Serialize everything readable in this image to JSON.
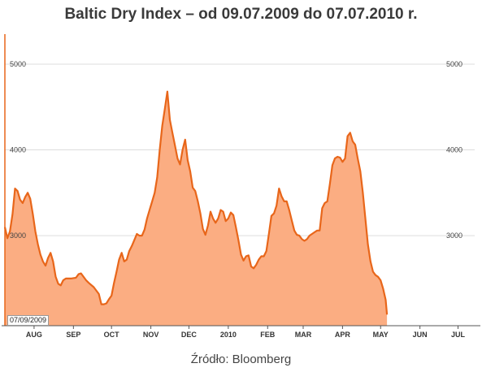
{
  "title": "Baltic Dry Index – od 09.07.2009 do 07.07.2010 r.",
  "source": "Źródło: Bloomberg",
  "date_badge": "07/09/2009",
  "colors": {
    "fill": "#fbad82",
    "line": "#e8661a",
    "grid": "#dddddd",
    "axis": "#555555"
  },
  "chart_data": {
    "type": "area",
    "title": "Baltic Dry Index – od 09.07.2009 do 07.07.2010 r.",
    "xlabel": "",
    "ylabel": "",
    "ylim": [
      1950,
      5350
    ],
    "xlim": [
      0,
      365
    ],
    "grid": true,
    "yticks": [
      3000,
      4000,
      5000
    ],
    "ytick_labels": [
      "3000",
      "4000",
      "5000"
    ],
    "xticks": [
      {
        "label": "AUG",
        "day": 23
      },
      {
        "label": "SEP",
        "day": 54
      },
      {
        "label": "OCT",
        "day": 84
      },
      {
        "label": "NOV",
        "day": 115
      },
      {
        "label": "DEC",
        "day": 145
      },
      {
        "label": "2010",
        "day": 176
      },
      {
        "label": "FEB",
        "day": 207
      },
      {
        "label": "MAR",
        "day": 235
      },
      {
        "label": "APR",
        "day": 266
      },
      {
        "label": "MAY",
        "day": 296
      },
      {
        "label": "JUN",
        "day": 327
      },
      {
        "label": "JUL",
        "day": 357
      }
    ],
    "series": [
      {
        "points": [
          [
            0,
            3100
          ],
          [
            2,
            2970
          ],
          [
            4,
            3050
          ],
          [
            6,
            3250
          ],
          [
            8,
            3550
          ],
          [
            10,
            3520
          ],
          [
            12,
            3420
          ],
          [
            14,
            3380
          ],
          [
            16,
            3450
          ],
          [
            18,
            3500
          ],
          [
            20,
            3430
          ],
          [
            22,
            3250
          ],
          [
            24,
            3050
          ],
          [
            26,
            2900
          ],
          [
            28,
            2780
          ],
          [
            30,
            2700
          ],
          [
            32,
            2650
          ],
          [
            34,
            2740
          ],
          [
            36,
            2800
          ],
          [
            38,
            2700
          ],
          [
            40,
            2520
          ],
          [
            42,
            2440
          ],
          [
            44,
            2420
          ],
          [
            46,
            2480
          ],
          [
            48,
            2500
          ],
          [
            52,
            2500
          ],
          [
            56,
            2510
          ],
          [
            58,
            2550
          ],
          [
            60,
            2560
          ],
          [
            64,
            2480
          ],
          [
            66,
            2450
          ],
          [
            70,
            2400
          ],
          [
            74,
            2320
          ],
          [
            76,
            2200
          ],
          [
            78,
            2200
          ],
          [
            80,
            2210
          ],
          [
            82,
            2260
          ],
          [
            84,
            2300
          ],
          [
            86,
            2450
          ],
          [
            88,
            2580
          ],
          [
            90,
            2720
          ],
          [
            92,
            2800
          ],
          [
            94,
            2700
          ],
          [
            96,
            2720
          ],
          [
            98,
            2820
          ],
          [
            100,
            2880
          ],
          [
            102,
            2950
          ],
          [
            104,
            3020
          ],
          [
            106,
            3000
          ],
          [
            108,
            3000
          ],
          [
            110,
            3070
          ],
          [
            112,
            3200
          ],
          [
            114,
            3300
          ],
          [
            116,
            3400
          ],
          [
            118,
            3500
          ],
          [
            120,
            3680
          ],
          [
            122,
            4000
          ],
          [
            124,
            4280
          ],
          [
            126,
            4480
          ],
          [
            128,
            4680
          ],
          [
            130,
            4350
          ],
          [
            132,
            4200
          ],
          [
            134,
            4050
          ],
          [
            136,
            3900
          ],
          [
            138,
            3830
          ],
          [
            140,
            4000
          ],
          [
            142,
            4120
          ],
          [
            144,
            3880
          ],
          [
            146,
            3750
          ],
          [
            148,
            3560
          ],
          [
            150,
            3520
          ],
          [
            152,
            3400
          ],
          [
            154,
            3260
          ],
          [
            156,
            3080
          ],
          [
            158,
            3010
          ],
          [
            160,
            3120
          ],
          [
            162,
            3280
          ],
          [
            164,
            3200
          ],
          [
            166,
            3150
          ],
          [
            168,
            3200
          ],
          [
            170,
            3300
          ],
          [
            172,
            3280
          ],
          [
            174,
            3170
          ],
          [
            176,
            3200
          ],
          [
            178,
            3270
          ],
          [
            180,
            3240
          ],
          [
            182,
            3100
          ],
          [
            184,
            2950
          ],
          [
            186,
            2780
          ],
          [
            188,
            2710
          ],
          [
            190,
            2760
          ],
          [
            192,
            2770
          ],
          [
            194,
            2640
          ],
          [
            196,
            2620
          ],
          [
            198,
            2660
          ],
          [
            200,
            2720
          ],
          [
            202,
            2760
          ],
          [
            204,
            2760
          ],
          [
            206,
            2820
          ],
          [
            208,
            3020
          ],
          [
            210,
            3230
          ],
          [
            212,
            3260
          ],
          [
            214,
            3350
          ],
          [
            216,
            3550
          ],
          [
            218,
            3460
          ],
          [
            220,
            3400
          ],
          [
            222,
            3400
          ],
          [
            224,
            3300
          ],
          [
            226,
            3180
          ],
          [
            228,
            3060
          ],
          [
            230,
            3010
          ],
          [
            232,
            3000
          ],
          [
            234,
            2960
          ],
          [
            236,
            2940
          ],
          [
            238,
            2960
          ],
          [
            240,
            3000
          ],
          [
            242,
            3020
          ],
          [
            244,
            3040
          ],
          [
            246,
            3060
          ],
          [
            248,
            3060
          ],
          [
            250,
            3320
          ],
          [
            252,
            3380
          ],
          [
            254,
            3400
          ],
          [
            256,
            3600
          ],
          [
            258,
            3820
          ],
          [
            260,
            3900
          ],
          [
            262,
            3920
          ],
          [
            264,
            3910
          ],
          [
            266,
            3860
          ],
          [
            268,
            3900
          ],
          [
            270,
            4160
          ],
          [
            272,
            4200
          ],
          [
            274,
            4100
          ],
          [
            276,
            4060
          ],
          [
            278,
            3900
          ],
          [
            280,
            3750
          ],
          [
            282,
            3500
          ],
          [
            284,
            3200
          ],
          [
            286,
            2900
          ],
          [
            288,
            2700
          ],
          [
            290,
            2580
          ],
          [
            292,
            2540
          ],
          [
            294,
            2520
          ],
          [
            296,
            2480
          ],
          [
            298,
            2380
          ],
          [
            300,
            2250
          ],
          [
            301,
            2080
          ]
        ]
      }
    ]
  }
}
